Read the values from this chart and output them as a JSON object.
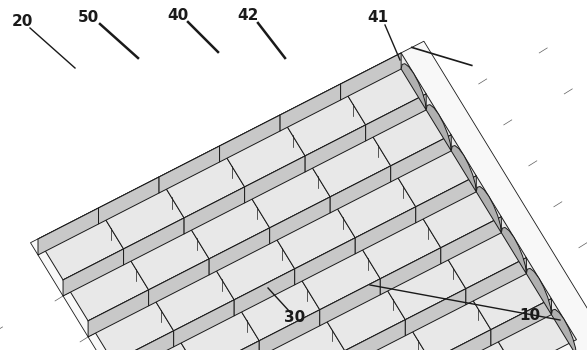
{
  "background_color": "#ffffff",
  "line_color": "#1a1a1a",
  "top_color": "#e8e8e8",
  "front_color": "#c8c8c8",
  "side_color": "#b0b0b0",
  "groove_color": "#d0d0d0",
  "plate_color": "#f0f0f0",
  "label_fontsize": 11,
  "label_fontweight": "bold",
  "fig_width": 5.87,
  "fig_height": 3.5,
  "dpi": 100,
  "n_ridges": 7,
  "n_segs": 6
}
